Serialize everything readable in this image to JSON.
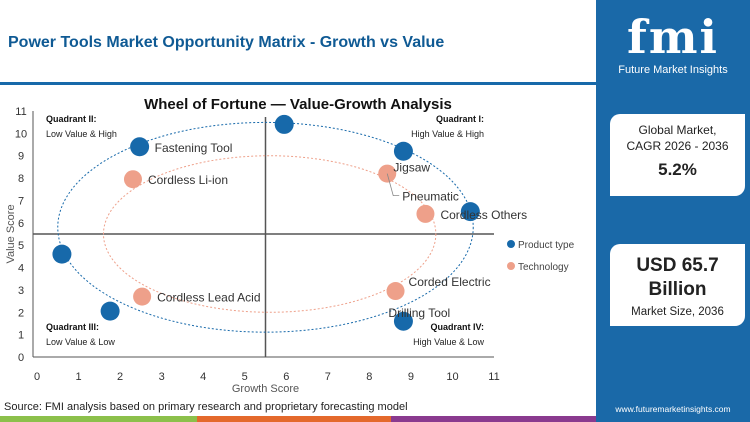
{
  "header": {
    "title": "Power Tools Market Opportunity Matrix - Growth vs Value"
  },
  "sidebar": {
    "logo_text": "fmi",
    "logo_subtitle": "Future Market Insights",
    "card1": {
      "label_line1": "Global Market,",
      "label_line2": "CAGR 2026 - 2036",
      "value": "5.2%"
    },
    "card2": {
      "value_line1": "USD 65.7",
      "value_line2": "Billion",
      "label": "Market Size, 2036"
    },
    "url": "www.futuremarketinsights.com"
  },
  "footer": {
    "source": "Source: FMI analysis based on primary research and proprietary forecasting model"
  },
  "colors": {
    "brand": "#1a69a8",
    "product": "#1769aa",
    "technology": "#eea08a",
    "bar_green": "#8cc04b",
    "bar_orange": "#e4692c",
    "bar_purple": "#8a3a8f"
  },
  "chart_data": {
    "type": "scatter",
    "title": "Wheel of Fortune — Value-Growth Analysis",
    "xlabel": "Growth Score",
    "ylabel": "Value Score",
    "xlim": [
      0,
      11
    ],
    "ylim": [
      0,
      11
    ],
    "xticks": [
      0,
      1,
      2,
      3,
      4,
      5,
      6,
      7,
      8,
      9,
      10,
      11
    ],
    "yticks": [
      0,
      1,
      2,
      3,
      4,
      5,
      6,
      7,
      8,
      9,
      10,
      11
    ],
    "quadrant_divider": {
      "x": 5.5,
      "y": 5.5
    },
    "quadrants": [
      {
        "title": "Quadrant II:",
        "subtitle": "Low Value & High",
        "position": "top-left"
      },
      {
        "title": "Quadrant I:",
        "subtitle": "High Value & High",
        "position": "top-right"
      },
      {
        "title": "Quadrant III:",
        "subtitle": "Low Value & Low",
        "position": "bottom-left"
      },
      {
        "title": "Quadrant IV:",
        "subtitle": "High Value & Low",
        "position": "bottom-right"
      }
    ],
    "legend_position": "right",
    "series": [
      {
        "name": "Product type",
        "color": "#1769aa",
        "points": [
          {
            "x": 5.95,
            "y": 10.4,
            "label": ""
          },
          {
            "x": 2.47,
            "y": 9.4,
            "label": "Fastening Tool"
          },
          {
            "x": 8.82,
            "y": 9.2,
            "label": "Jigsaw"
          },
          {
            "x": 10.43,
            "y": 6.5,
            "label": ""
          },
          {
            "x": 0.6,
            "y": 4.6,
            "label": ""
          },
          {
            "x": 1.76,
            "y": 2.05,
            "label": ""
          },
          {
            "x": 8.82,
            "y": 1.6,
            "label": "Drilling Tool"
          }
        ]
      },
      {
        "name": "Technology",
        "color": "#eea08a",
        "points": [
          {
            "x": 2.31,
            "y": 7.95,
            "label": "Cordless Li-ion"
          },
          {
            "x": 8.43,
            "y": 8.2,
            "label": "Pneumatic"
          },
          {
            "x": 9.35,
            "y": 6.4,
            "label": "Cordless Others"
          },
          {
            "x": 2.53,
            "y": 2.7,
            "label": "Cordless Lead Acid"
          },
          {
            "x": 8.63,
            "y": 2.95,
            "label": "Corded Electric"
          }
        ]
      }
    ]
  }
}
